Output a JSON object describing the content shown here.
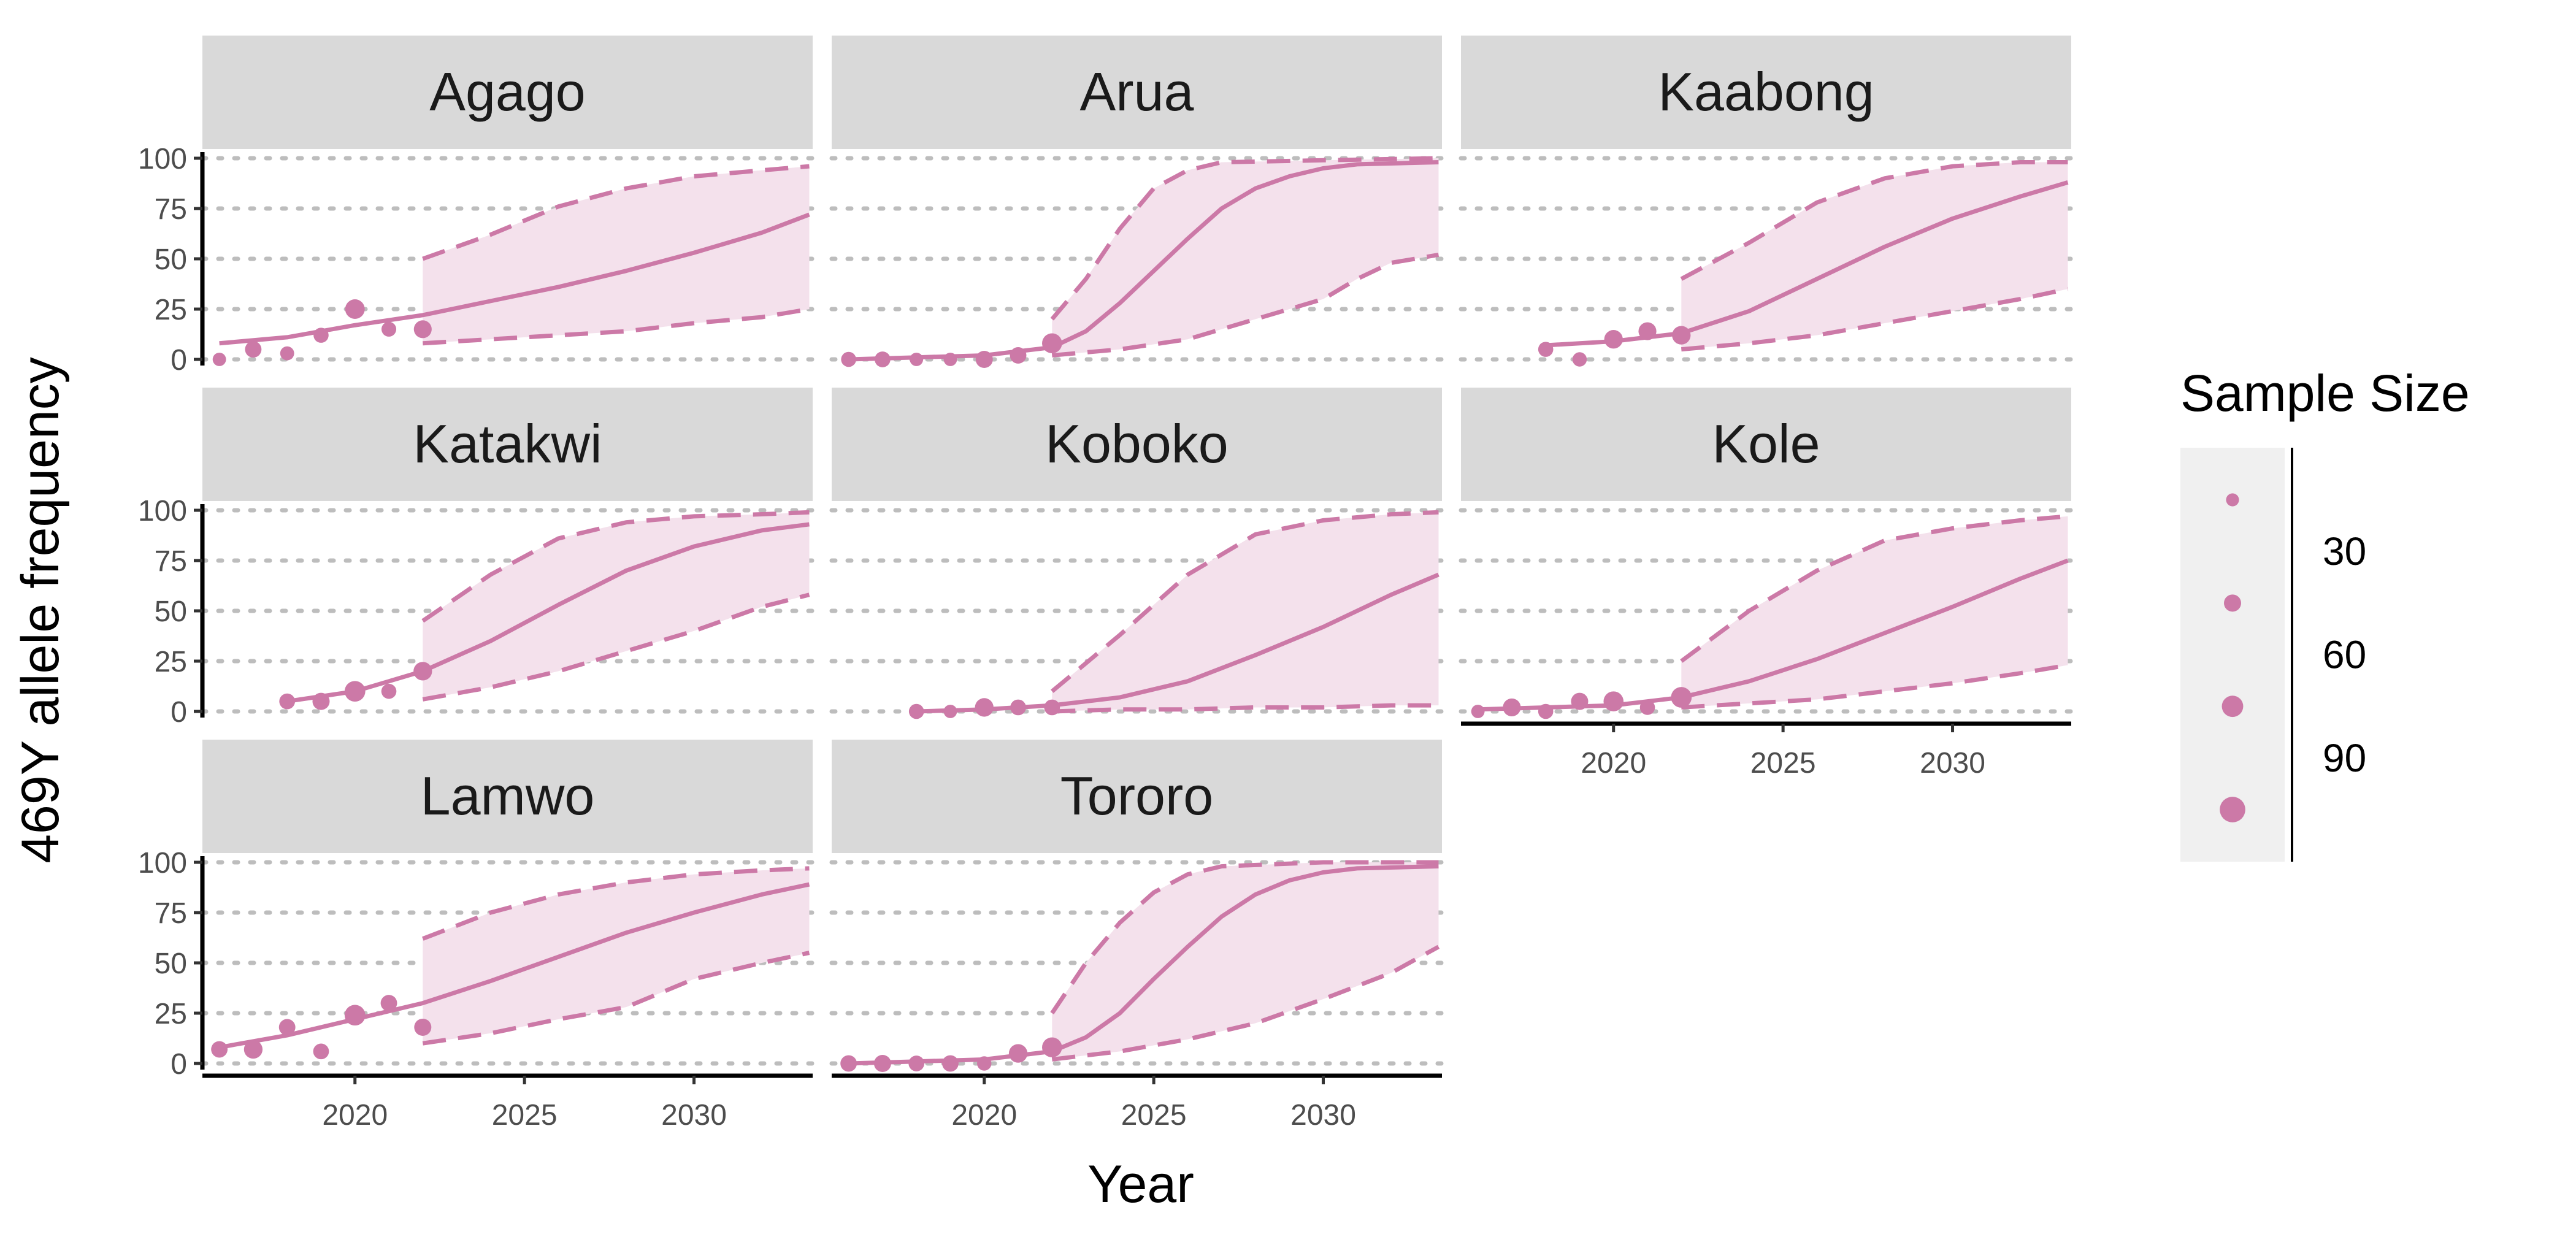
{
  "chart_data": {
    "type": "line",
    "facet_layout": "3x3 wrap",
    "ylabel": "469Y allele frequency",
    "xlabel": "Year",
    "ylim": [
      0,
      100
    ],
    "xlim": [
      2015.5,
      2033.5
    ],
    "y_ticks": [
      0,
      25,
      50,
      75,
      100
    ],
    "x_ticks": [
      2020,
      2025,
      2030
    ],
    "grid": "horizontal dotted",
    "colors": {
      "series": "#cc79a7",
      "ribbon": "#f4e1ec",
      "strip": "#d9d9d9",
      "grid": "#bdbdbd",
      "legend_bg": "#f0f0f0"
    },
    "panels": [
      {
        "name": "Agago",
        "observed": [
          [
            2016,
            0,
            18
          ],
          [
            2017,
            5,
            40
          ],
          [
            2018,
            3,
            22
          ],
          [
            2019,
            12,
            30
          ],
          [
            2020,
            25,
            62
          ],
          [
            2021,
            15,
            28
          ],
          [
            2022,
            15,
            50
          ]
        ],
        "median": [
          [
            2016,
            8
          ],
          [
            2018,
            11
          ],
          [
            2020,
            17
          ],
          [
            2022,
            22
          ],
          [
            2024,
            29
          ],
          [
            2026,
            36
          ],
          [
            2028,
            44
          ],
          [
            2030,
            53
          ],
          [
            2032,
            63
          ],
          [
            2033.4,
            72
          ]
        ],
        "lower": [
          [
            2022,
            8
          ],
          [
            2024,
            10
          ],
          [
            2026,
            12
          ],
          [
            2028,
            14
          ],
          [
            2030,
            18
          ],
          [
            2032,
            21
          ],
          [
            2033.4,
            25
          ]
        ],
        "upper": [
          [
            2022,
            50
          ],
          [
            2024,
            62
          ],
          [
            2026,
            76
          ],
          [
            2028,
            85
          ],
          [
            2030,
            91
          ],
          [
            2032,
            94
          ],
          [
            2033.4,
            96
          ]
        ]
      },
      {
        "name": "Arua",
        "observed": [
          [
            2016,
            0,
            30
          ],
          [
            2017,
            0,
            35
          ],
          [
            2018,
            0,
            18
          ],
          [
            2019,
            0,
            18
          ],
          [
            2020,
            0,
            45
          ],
          [
            2021,
            2,
            40
          ],
          [
            2022,
            8,
            65
          ]
        ],
        "median": [
          [
            2016,
            0
          ],
          [
            2018,
            1
          ],
          [
            2020,
            2
          ],
          [
            2022,
            6
          ],
          [
            2023,
            14
          ],
          [
            2024,
            28
          ],
          [
            2025,
            44
          ],
          [
            2026,
            60
          ],
          [
            2027,
            75
          ],
          [
            2028,
            85
          ],
          [
            2029,
            91
          ],
          [
            2030,
            95
          ],
          [
            2031,
            97
          ],
          [
            2033.4,
            98
          ]
        ],
        "lower": [
          [
            2022,
            2
          ],
          [
            2024,
            5
          ],
          [
            2026,
            10
          ],
          [
            2028,
            20
          ],
          [
            2030,
            30
          ],
          [
            2031,
            40
          ],
          [
            2032,
            48
          ],
          [
            2033.4,
            52
          ]
        ],
        "upper": [
          [
            2022,
            20
          ],
          [
            2023,
            40
          ],
          [
            2024,
            65
          ],
          [
            2025,
            85
          ],
          [
            2026,
            94
          ],
          [
            2027,
            98
          ],
          [
            2030,
            99
          ],
          [
            2033.4,
            100
          ]
        ]
      },
      {
        "name": "Kaabong",
        "observed": [
          [
            2018,
            5,
            30
          ],
          [
            2019,
            0,
            25
          ],
          [
            2020,
            10,
            55
          ],
          [
            2021,
            14,
            50
          ],
          [
            2022,
            12,
            55
          ]
        ],
        "median": [
          [
            2018,
            7
          ],
          [
            2020,
            9
          ],
          [
            2022,
            13
          ],
          [
            2024,
            24
          ],
          [
            2026,
            40
          ],
          [
            2028,
            56
          ],
          [
            2030,
            70
          ],
          [
            2032,
            81
          ],
          [
            2033.4,
            88
          ]
        ],
        "lower": [
          [
            2022,
            5
          ],
          [
            2024,
            8
          ],
          [
            2026,
            12
          ],
          [
            2028,
            18
          ],
          [
            2030,
            24
          ],
          [
            2032,
            30
          ],
          [
            2033.4,
            35
          ]
        ],
        "upper": [
          [
            2022,
            40
          ],
          [
            2024,
            58
          ],
          [
            2026,
            78
          ],
          [
            2028,
            90
          ],
          [
            2030,
            96
          ],
          [
            2032,
            98
          ],
          [
            2033.4,
            98
          ]
        ]
      },
      {
        "name": "Katakwi",
        "observed": [
          [
            2018,
            5,
            35
          ],
          [
            2019,
            5,
            45
          ],
          [
            2020,
            10,
            70
          ],
          [
            2021,
            10,
            30
          ],
          [
            2022,
            20,
            55
          ]
        ],
        "median": [
          [
            2018,
            5
          ],
          [
            2020,
            10
          ],
          [
            2022,
            20
          ],
          [
            2024,
            35
          ],
          [
            2026,
            53
          ],
          [
            2028,
            70
          ],
          [
            2030,
            82
          ],
          [
            2032,
            90
          ],
          [
            2033.4,
            93
          ]
        ],
        "lower": [
          [
            2022,
            6
          ],
          [
            2024,
            12
          ],
          [
            2026,
            20
          ],
          [
            2028,
            30
          ],
          [
            2030,
            40
          ],
          [
            2032,
            52
          ],
          [
            2033.4,
            58
          ]
        ],
        "upper": [
          [
            2022,
            45
          ],
          [
            2024,
            68
          ],
          [
            2026,
            86
          ],
          [
            2028,
            94
          ],
          [
            2030,
            97
          ],
          [
            2032,
            98
          ],
          [
            2033.4,
            99
          ]
        ]
      },
      {
        "name": "Koboko",
        "observed": [
          [
            2018,
            0,
            30
          ],
          [
            2019,
            0,
            18
          ],
          [
            2020,
            2,
            55
          ],
          [
            2021,
            2,
            35
          ],
          [
            2022,
            2,
            35
          ]
        ],
        "median": [
          [
            2018,
            0
          ],
          [
            2020,
            1
          ],
          [
            2022,
            3
          ],
          [
            2024,
            7
          ],
          [
            2026,
            15
          ],
          [
            2028,
            28
          ],
          [
            2030,
            42
          ],
          [
            2032,
            58
          ],
          [
            2033.4,
            68
          ]
        ],
        "lower": [
          [
            2022,
            0
          ],
          [
            2024,
            1
          ],
          [
            2026,
            1
          ],
          [
            2028,
            2
          ],
          [
            2030,
            2
          ],
          [
            2032,
            3
          ],
          [
            2033.4,
            3
          ]
        ],
        "upper": [
          [
            2022,
            10
          ],
          [
            2024,
            38
          ],
          [
            2026,
            68
          ],
          [
            2028,
            88
          ],
          [
            2030,
            95
          ],
          [
            2032,
            98
          ],
          [
            2033.4,
            99
          ]
        ]
      },
      {
        "name": "Kole",
        "observed": [
          [
            2016,
            0,
            18
          ],
          [
            2017,
            2,
            50
          ],
          [
            2018,
            0,
            30
          ],
          [
            2019,
            5,
            45
          ],
          [
            2020,
            5,
            65
          ],
          [
            2021,
            2,
            30
          ],
          [
            2022,
            7,
            70
          ]
        ],
        "median": [
          [
            2016,
            1
          ],
          [
            2018,
            2
          ],
          [
            2020,
            3
          ],
          [
            2022,
            7
          ],
          [
            2024,
            15
          ],
          [
            2026,
            26
          ],
          [
            2028,
            39
          ],
          [
            2030,
            52
          ],
          [
            2032,
            66
          ],
          [
            2033.4,
            75
          ]
        ],
        "lower": [
          [
            2022,
            2
          ],
          [
            2024,
            4
          ],
          [
            2026,
            6
          ],
          [
            2028,
            10
          ],
          [
            2030,
            14
          ],
          [
            2032,
            19
          ],
          [
            2033.4,
            23
          ]
        ],
        "upper": [
          [
            2022,
            25
          ],
          [
            2024,
            50
          ],
          [
            2026,
            70
          ],
          [
            2028,
            85
          ],
          [
            2030,
            91
          ],
          [
            2032,
            95
          ],
          [
            2033.4,
            97
          ]
        ]
      },
      {
        "name": "Lamwo",
        "observed": [
          [
            2016,
            7,
            40
          ],
          [
            2017,
            7,
            55
          ],
          [
            2018,
            18,
            40
          ],
          [
            2019,
            6,
            35
          ],
          [
            2020,
            24,
            70
          ],
          [
            2021,
            30,
            40
          ],
          [
            2022,
            18,
            45
          ]
        ],
        "median": [
          [
            2016,
            8
          ],
          [
            2018,
            14
          ],
          [
            2020,
            22
          ],
          [
            2022,
            30
          ],
          [
            2024,
            41
          ],
          [
            2026,
            53
          ],
          [
            2028,
            65
          ],
          [
            2030,
            75
          ],
          [
            2032,
            84
          ],
          [
            2033.4,
            89
          ]
        ],
        "lower": [
          [
            2022,
            10
          ],
          [
            2024,
            15
          ],
          [
            2026,
            22
          ],
          [
            2028,
            28
          ],
          [
            2030,
            42
          ],
          [
            2032,
            50
          ],
          [
            2033.4,
            55
          ]
        ],
        "upper": [
          [
            2022,
            62
          ],
          [
            2024,
            75
          ],
          [
            2026,
            84
          ],
          [
            2028,
            90
          ],
          [
            2030,
            94
          ],
          [
            2032,
            96
          ],
          [
            2033.4,
            97
          ]
        ]
      },
      {
        "name": "Tororo",
        "observed": [
          [
            2016,
            0,
            40
          ],
          [
            2017,
            0,
            45
          ],
          [
            2018,
            0,
            35
          ],
          [
            2019,
            0,
            40
          ],
          [
            2020,
            0,
            25
          ],
          [
            2021,
            5,
            55
          ],
          [
            2022,
            8,
            65
          ]
        ],
        "median": [
          [
            2016,
            0
          ],
          [
            2018,
            1
          ],
          [
            2020,
            2
          ],
          [
            2022,
            6
          ],
          [
            2023,
            13
          ],
          [
            2024,
            25
          ],
          [
            2025,
            42
          ],
          [
            2026,
            58
          ],
          [
            2027,
            73
          ],
          [
            2028,
            84
          ],
          [
            2029,
            91
          ],
          [
            2030,
            95
          ],
          [
            2031,
            97
          ],
          [
            2033.4,
            98
          ]
        ],
        "lower": [
          [
            2022,
            2
          ],
          [
            2024,
            6
          ],
          [
            2026,
            12
          ],
          [
            2028,
            20
          ],
          [
            2030,
            32
          ],
          [
            2032,
            45
          ],
          [
            2033.4,
            58
          ]
        ],
        "upper": [
          [
            2022,
            25
          ],
          [
            2023,
            50
          ],
          [
            2024,
            70
          ],
          [
            2025,
            85
          ],
          [
            2026,
            94
          ],
          [
            2027,
            98
          ],
          [
            2030,
            100
          ],
          [
            2033.4,
            100
          ]
        ]
      }
    ],
    "legend": {
      "title": "Sample Size",
      "placement": "right",
      "labels": [
        "30",
        "60",
        "90"
      ],
      "keys": [
        15,
        45,
        75,
        105
      ],
      "label_values": [
        30,
        60,
        90
      ],
      "range": [
        10,
        115
      ]
    }
  }
}
